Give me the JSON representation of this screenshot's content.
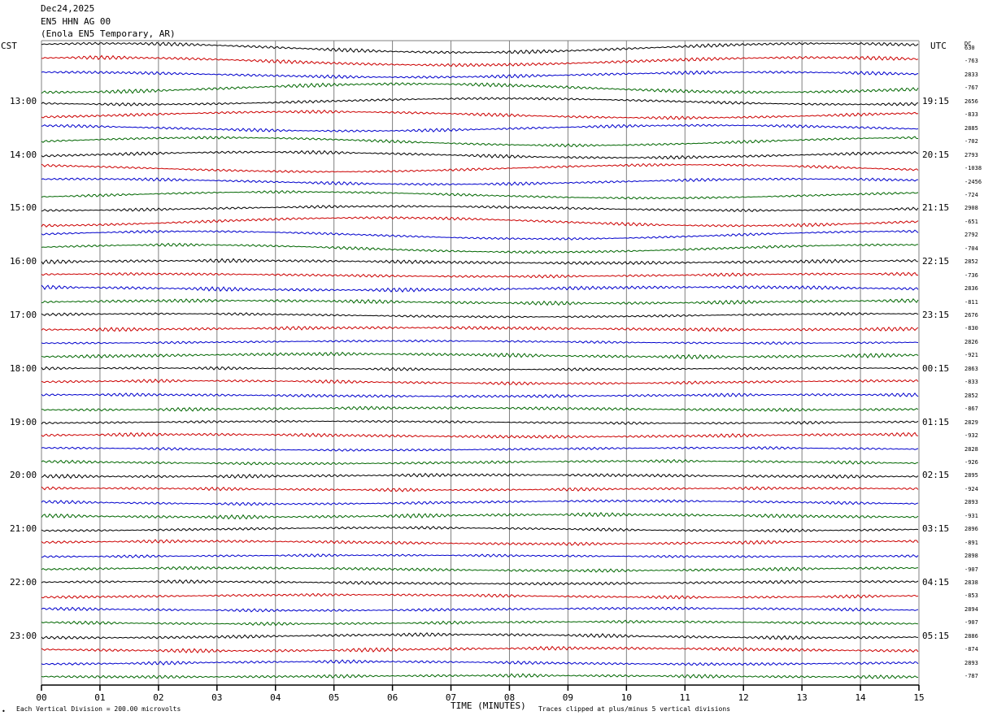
{
  "header": {
    "date": "Dec24,2025",
    "channel": "EN5 HHN AG 00",
    "station": "(Enola EN5 Temporary, AR)"
  },
  "left_tz": "CST",
  "right_tz": "UTC",
  "dc_label": "DC",
  "footer": {
    "scale_note": "Each Vertical Division =  200.00 microvolts",
    "xlabel": "TIME (MINUTES)",
    "clip_note": "Traces clipped at plus/minus 5 vertical divisions",
    "corner_mark": "•"
  },
  "chart_data": {
    "type": "line",
    "title": "Dec24,2025",
    "xlabel": "TIME (MINUTES)",
    "xlim": [
      0,
      15
    ],
    "x_ticks": [
      "00",
      "01",
      "02",
      "03",
      "04",
      "05",
      "06",
      "07",
      "08",
      "09",
      "10",
      "11",
      "12",
      "13",
      "14",
      "15"
    ],
    "left_hour_labels": [
      "13:00",
      "14:00",
      "15:00",
      "16:00",
      "17:00",
      "18:00",
      "19:00",
      "20:00",
      "21:00",
      "22:00",
      "23:00"
    ],
    "right_hour_labels": [
      "19:15",
      "20:15",
      "21:15",
      "22:15",
      "23:15",
      "00:15",
      "01:15",
      "02:15",
      "03:15",
      "04:15",
      "05:15"
    ],
    "trace_colors": [
      "#000000",
      "#cc0000",
      "#0000cc",
      "#006600"
    ],
    "grid": true,
    "trace_count": 48,
    "dc_offsets": [
      "630",
      "-763",
      "2833",
      "-767",
      "2656",
      "-833",
      "2885",
      "-702",
      "2793",
      "-1038",
      "-2456",
      "-724",
      "2908",
      "-651",
      "2792",
      "-704",
      "2852",
      "-736",
      "2836",
      "-811",
      "2676",
      "-830",
      "2826",
      "-921",
      "2863",
      "-833",
      "2852",
      "-867",
      "2829",
      "-932",
      "2828",
      "-926",
      "2895",
      "-924",
      "2893",
      "-931",
      "2896",
      "-891",
      "2898",
      "-907",
      "2838",
      "-853",
      "2894",
      "-907",
      "2886",
      "-874",
      "2893",
      "-787"
    ]
  }
}
